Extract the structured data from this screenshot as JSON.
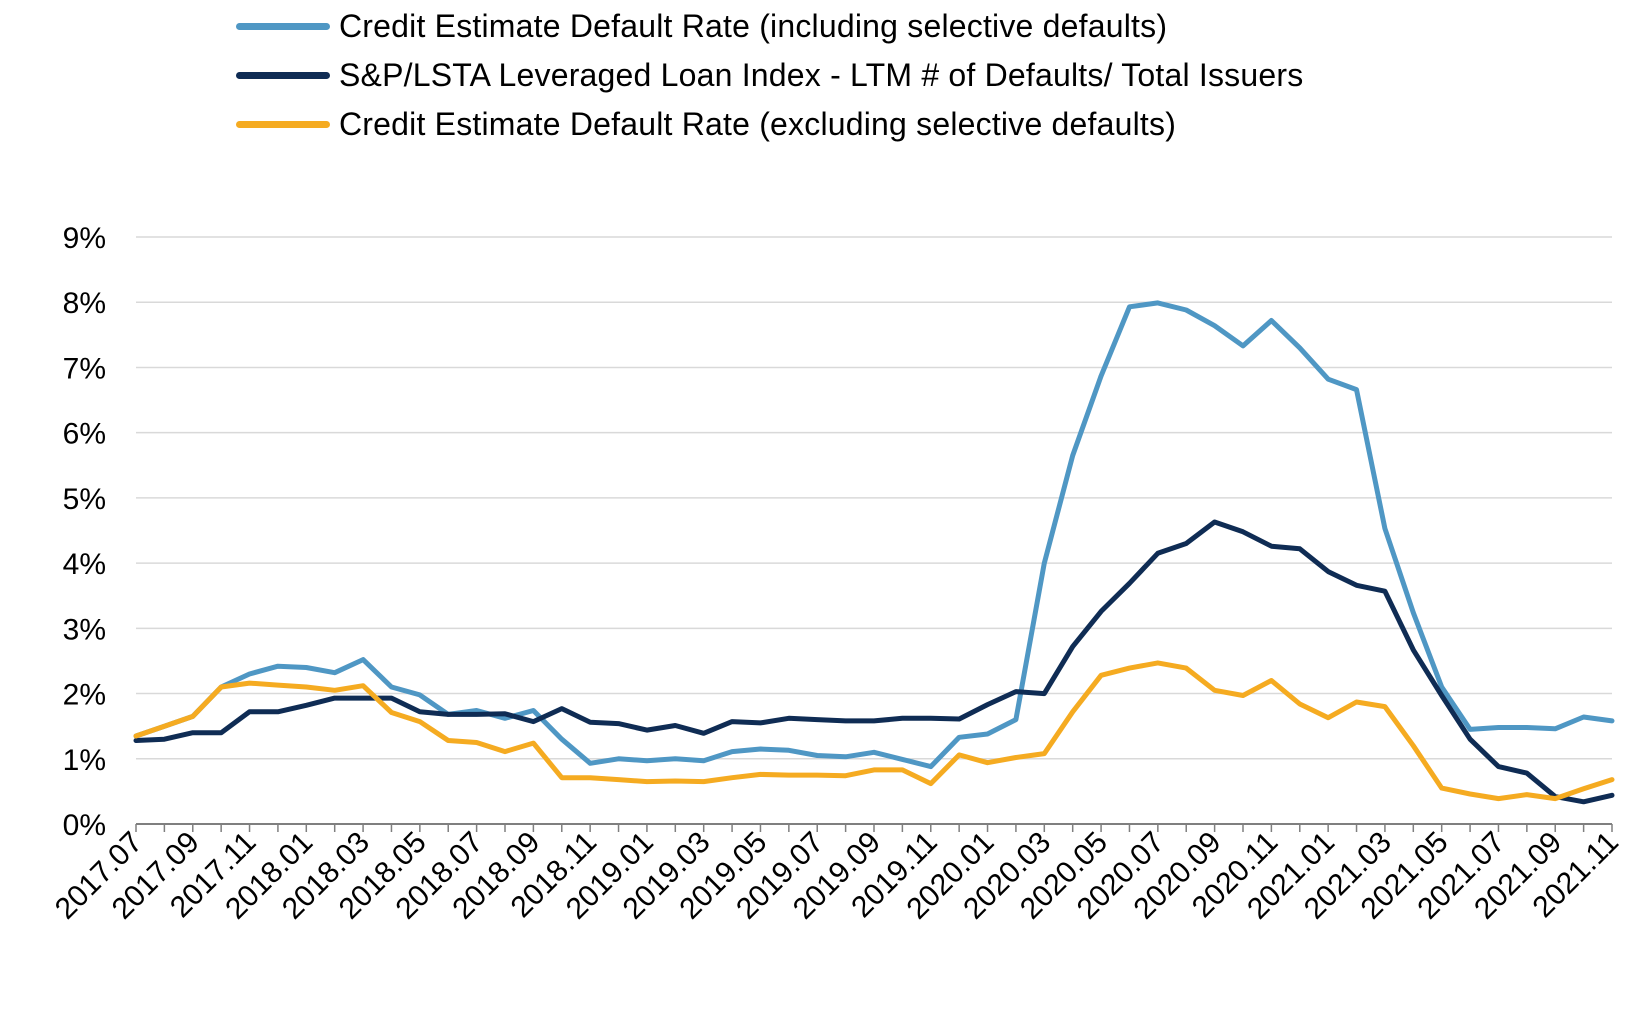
{
  "chart_data": {
    "type": "line",
    "title": "",
    "xlabel": "",
    "ylabel": "",
    "ylim": [
      0,
      9
    ],
    "y_ticks": [
      "0%",
      "1%",
      "2%",
      "3%",
      "4%",
      "5%",
      "6%",
      "7%",
      "8%",
      "9%"
    ],
    "grid": "horizontal",
    "legend_position": "top",
    "x_tick_labels": [
      "2017.07",
      "2017.09",
      "2017.11",
      "2018.01",
      "2018.03",
      "2018.05",
      "2018.07",
      "2018.09",
      "2018.11",
      "2019.01",
      "2019.03",
      "2019.05",
      "2019.07",
      "2019.09",
      "2019.11",
      "2020.01",
      "2020.03",
      "2020.05",
      "2020.07",
      "2020.09",
      "2020.11",
      "2021.01",
      "2021.03",
      "2021.05",
      "2021.07",
      "2021.09",
      "2021.11"
    ],
    "x": [
      "2017.07",
      "2017.08",
      "2017.09",
      "2017.10",
      "2017.11",
      "2017.12",
      "2018.01",
      "2018.02",
      "2018.03",
      "2018.04",
      "2018.05",
      "2018.06",
      "2018.07",
      "2018.08",
      "2018.09",
      "2018.10",
      "2018.11",
      "2018.12",
      "2019.01",
      "2019.02",
      "2019.03",
      "2019.04",
      "2019.05",
      "2019.06",
      "2019.07",
      "2019.08",
      "2019.09",
      "2019.10",
      "2019.11",
      "2019.12",
      "2020.01",
      "2020.02",
      "2020.03",
      "2020.04",
      "2020.05",
      "2020.06",
      "2020.07",
      "2020.08",
      "2020.09",
      "2020.10",
      "2020.11",
      "2020.12",
      "2021.01",
      "2021.02",
      "2021.03",
      "2021.04",
      "2021.05",
      "2021.06",
      "2021.07",
      "2021.08",
      "2021.09",
      "2021.10",
      "2021.11"
    ],
    "series": [
      {
        "name": "Credit Estimate Default Rate (including selective defaults)",
        "color": "#4f97c4",
        "values": [
          1.35,
          1.5,
          1.65,
          2.1,
          2.3,
          2.42,
          2.4,
          2.32,
          2.52,
          2.1,
          1.98,
          1.68,
          1.74,
          1.62,
          1.74,
          1.3,
          0.93,
          1.0,
          0.97,
          1.0,
          0.97,
          1.11,
          1.15,
          1.13,
          1.05,
          1.03,
          1.1,
          0.99,
          0.88,
          1.33,
          1.38,
          1.6,
          4.0,
          5.65,
          6.87,
          7.93,
          7.99,
          7.88,
          7.64,
          7.33,
          7.72,
          7.3,
          6.82,
          6.66,
          4.53,
          3.24,
          2.1,
          1.45,
          1.48,
          1.48,
          1.46,
          1.64,
          1.58
        ]
      },
      {
        "name": "S&P/LSTA Leveraged Loan Index - LTM # of Defaults/ Total Issuers",
        "color": "#0f2c54",
        "values": [
          1.28,
          1.3,
          1.4,
          1.4,
          1.72,
          1.72,
          1.82,
          1.93,
          1.93,
          1.93,
          1.72,
          1.68,
          1.68,
          1.69,
          1.57,
          1.77,
          1.56,
          1.54,
          1.44,
          1.51,
          1.39,
          1.57,
          1.55,
          1.62,
          1.6,
          1.58,
          1.58,
          1.62,
          1.62,
          1.61,
          1.83,
          2.03,
          2.0,
          2.72,
          3.26,
          3.69,
          4.15,
          4.3,
          4.63,
          4.48,
          4.26,
          4.22,
          3.87,
          3.66,
          3.57,
          2.67,
          1.97,
          1.3,
          0.88,
          0.78,
          0.42,
          0.34,
          0.44
        ]
      },
      {
        "name": "Credit Estimate Default Rate (excluding selective defaults)",
        "color": "#f5ab21",
        "values": [
          1.35,
          1.5,
          1.65,
          2.1,
          2.16,
          2.13,
          2.1,
          2.05,
          2.12,
          1.71,
          1.57,
          1.28,
          1.25,
          1.11,
          1.24,
          0.71,
          0.71,
          0.68,
          0.65,
          0.66,
          0.65,
          0.71,
          0.76,
          0.75,
          0.75,
          0.74,
          0.83,
          0.83,
          0.62,
          1.06,
          0.94,
          1.02,
          1.08,
          1.72,
          2.28,
          2.39,
          2.47,
          2.39,
          2.05,
          1.97,
          2.2,
          1.84,
          1.63,
          1.87,
          1.8,
          1.2,
          0.55,
          0.46,
          0.39,
          0.45,
          0.39,
          0.54,
          0.68
        ]
      }
    ]
  }
}
